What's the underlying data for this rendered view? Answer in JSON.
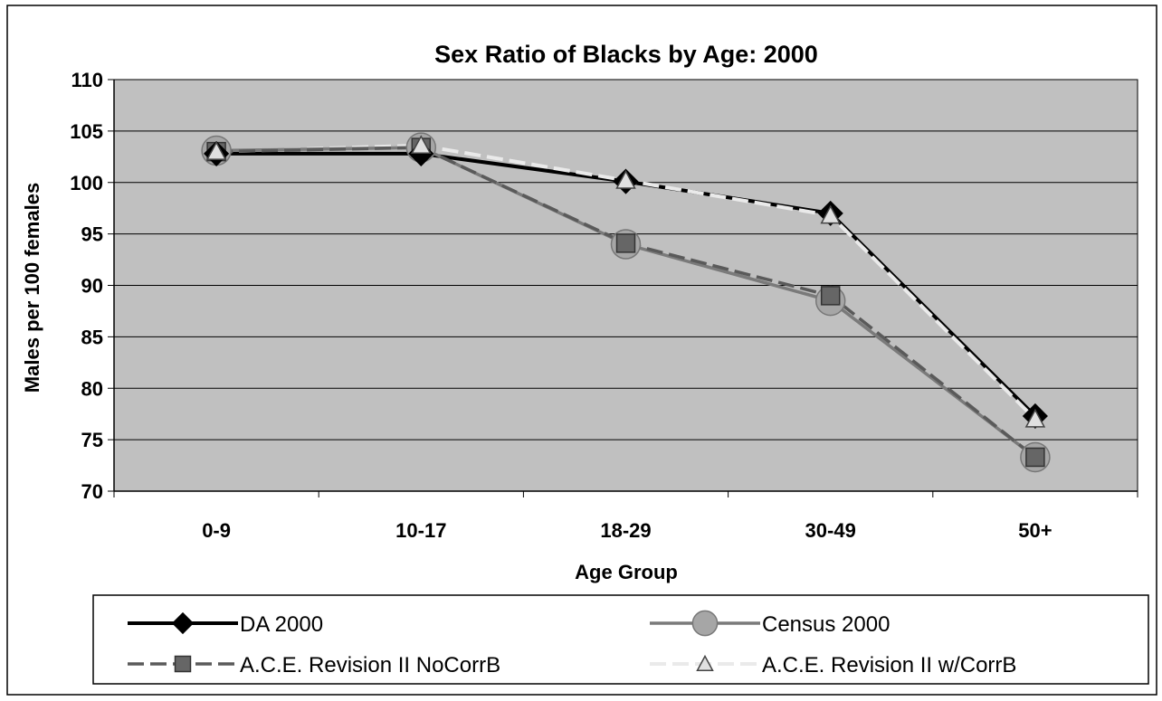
{
  "chart_data": {
    "type": "line",
    "title": "Sex Ratio of Blacks by Age:  2000",
    "xlabel": "Age Group",
    "ylabel": "Males per 100 females",
    "categories": [
      "0-9",
      "10-17",
      "18-29",
      "30-49",
      "50+"
    ],
    "ylim": [
      70,
      110
    ],
    "yticks": [
      70,
      75,
      80,
      85,
      90,
      95,
      100,
      105,
      110
    ],
    "grid": true,
    "legend_position": "bottom",
    "series": [
      {
        "name": "DA 2000",
        "values": [
          102.8,
          102.8,
          100.1,
          97.0,
          77.3
        ],
        "color": "#000000",
        "marker": "diamond",
        "line": "solid"
      },
      {
        "name": "Census 2000",
        "values": [
          103.1,
          103.4,
          94.0,
          88.5,
          73.3
        ],
        "color": "#7a7a7a",
        "marker": "circle",
        "line": "solid"
      },
      {
        "name": "A.C.E. Revision II NoCorrB",
        "values": [
          103.0,
          103.4,
          94.1,
          89.0,
          73.3
        ],
        "color": "#5a5a5a",
        "marker": "square",
        "line": "dashed"
      },
      {
        "name": "A.C.E. Revision II w/CorrB",
        "values": [
          103.0,
          103.6,
          100.2,
          96.8,
          77.0
        ],
        "color": "#eaeaea",
        "marker": "triangle",
        "line": "dashed"
      }
    ]
  }
}
